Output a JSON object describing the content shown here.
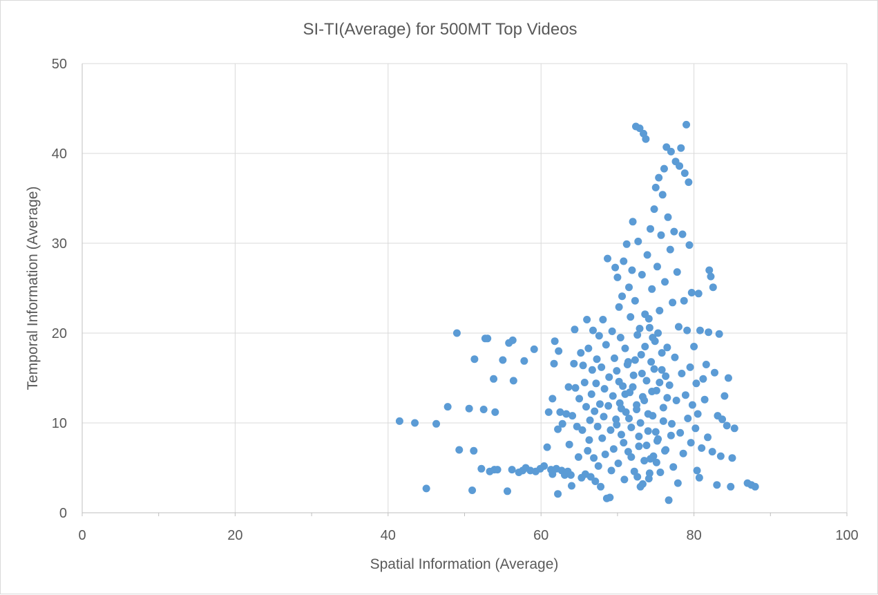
{
  "chart_data": {
    "type": "scatter",
    "title": "SI-TI(Average) for 500MT Top Videos",
    "xlabel": "Spatial Information (Average)",
    "ylabel": "Temporal Information (Average)",
    "xlim": [
      0,
      100
    ],
    "ylim": [
      0,
      50
    ],
    "xticks": [
      "0",
      "20",
      "40",
      "60",
      "80",
      "100"
    ],
    "yticks": [
      "0",
      "10",
      "20",
      "30",
      "40",
      "50"
    ],
    "grid": true,
    "legend": "none",
    "marker_color": "#5b9bd5",
    "series": [
      {
        "points": [
          [
            41.5,
            10.2
          ],
          [
            43.5,
            10.0
          ],
          [
            46.3,
            9.9
          ],
          [
            45.0,
            2.7
          ],
          [
            47.8,
            11.8
          ],
          [
            49.0,
            20.0
          ],
          [
            49.3,
            7.0
          ],
          [
            50.6,
            11.6
          ],
          [
            51.2,
            6.9
          ],
          [
            51.0,
            2.5
          ],
          [
            51.3,
            17.1
          ],
          [
            52.2,
            4.9
          ],
          [
            52.5,
            11.5
          ],
          [
            52.7,
            19.4
          ],
          [
            53.0,
            19.4
          ],
          [
            53.3,
            4.6
          ],
          [
            53.9,
            4.8
          ],
          [
            53.8,
            14.9
          ],
          [
            54.0,
            11.2
          ],
          [
            54.3,
            4.8
          ],
          [
            55.0,
            17.0
          ],
          [
            55.6,
            2.4
          ],
          [
            55.8,
            18.9
          ],
          [
            56.3,
            19.2
          ],
          [
            56.2,
            4.8
          ],
          [
            56.4,
            14.7
          ],
          [
            57.1,
            4.5
          ],
          [
            57.6,
            4.7
          ],
          [
            57.8,
            16.9
          ],
          [
            58.0,
            5.0
          ],
          [
            58.6,
            4.7
          ],
          [
            59.1,
            18.2
          ],
          [
            59.3,
            4.6
          ],
          [
            59.9,
            4.9
          ],
          [
            60.4,
            5.2
          ],
          [
            60.8,
            7.3
          ],
          [
            61.0,
            11.2
          ],
          [
            61.3,
            4.8
          ],
          [
            61.5,
            12.7
          ],
          [
            61.5,
            4.3
          ],
          [
            61.7,
            16.6
          ],
          [
            61.8,
            19.1
          ],
          [
            62.0,
            4.9
          ],
          [
            62.2,
            2.1
          ],
          [
            62.2,
            9.3
          ],
          [
            62.3,
            18.0
          ],
          [
            62.5,
            11.2
          ],
          [
            62.7,
            4.7
          ],
          [
            62.8,
            9.9
          ],
          [
            63.1,
            4.2
          ],
          [
            63.3,
            11.0
          ],
          [
            63.5,
            4.6
          ],
          [
            63.6,
            14.0
          ],
          [
            63.7,
            7.6
          ],
          [
            63.9,
            4.2
          ],
          [
            64.0,
            3.0
          ],
          [
            64.1,
            10.8
          ],
          [
            64.3,
            16.6
          ],
          [
            64.4,
            20.4
          ],
          [
            64.5,
            13.9
          ],
          [
            64.7,
            9.6
          ],
          [
            64.9,
            6.2
          ],
          [
            65.0,
            12.7
          ],
          [
            65.2,
            17.8
          ],
          [
            65.3,
            3.9
          ],
          [
            65.4,
            9.2
          ],
          [
            65.5,
            16.4
          ],
          [
            65.7,
            14.5
          ],
          [
            65.8,
            4.3
          ],
          [
            65.9,
            11.8
          ],
          [
            66.0,
            21.5
          ],
          [
            66.1,
            6.9
          ],
          [
            66.2,
            18.3
          ],
          [
            66.3,
            8.1
          ],
          [
            66.4,
            10.3
          ],
          [
            66.5,
            4.0
          ],
          [
            66.6,
            13.2
          ],
          [
            66.7,
            15.9
          ],
          [
            66.8,
            20.3
          ],
          [
            66.9,
            6.1
          ],
          [
            67.0,
            11.3
          ],
          [
            67.1,
            3.5
          ],
          [
            67.2,
            14.4
          ],
          [
            67.3,
            17.1
          ],
          [
            67.4,
            9.6
          ],
          [
            67.5,
            5.2
          ],
          [
            67.6,
            19.7
          ],
          [
            67.7,
            12.1
          ],
          [
            67.8,
            2.9
          ],
          [
            67.9,
            16.2
          ],
          [
            68.0,
            8.3
          ],
          [
            68.1,
            21.5
          ],
          [
            68.2,
            10.7
          ],
          [
            68.3,
            13.8
          ],
          [
            68.4,
            6.5
          ],
          [
            68.5,
            18.7
          ],
          [
            68.6,
            1.6
          ],
          [
            68.7,
            28.3
          ],
          [
            68.8,
            11.9
          ],
          [
            68.9,
            15.1
          ],
          [
            69.0,
            1.7
          ],
          [
            69.1,
            9.2
          ],
          [
            69.2,
            4.7
          ],
          [
            69.3,
            20.2
          ],
          [
            69.4,
            13.0
          ],
          [
            69.5,
            7.1
          ],
          [
            69.6,
            17.2
          ],
          [
            69.7,
            27.3
          ],
          [
            69.8,
            10.4
          ],
          [
            69.9,
            15.8
          ],
          [
            70.0,
            26.2
          ],
          [
            70.1,
            5.5
          ],
          [
            70.2,
            22.9
          ],
          [
            70.3,
            12.2
          ],
          [
            70.4,
            19.5
          ],
          [
            70.5,
            8.7
          ],
          [
            70.6,
            24.1
          ],
          [
            70.7,
            14.1
          ],
          [
            70.8,
            28.0
          ],
          [
            70.9,
            3.7
          ],
          [
            71.0,
            18.3
          ],
          [
            71.1,
            11.2
          ],
          [
            71.2,
            29.9
          ],
          [
            71.3,
            16.5
          ],
          [
            71.4,
            6.8
          ],
          [
            71.5,
            25.1
          ],
          [
            71.6,
            13.4
          ],
          [
            71.7,
            21.8
          ],
          [
            71.8,
            9.5
          ],
          [
            71.9,
            27.0
          ],
          [
            72.0,
            32.4
          ],
          [
            72.1,
            15.3
          ],
          [
            72.2,
            4.6
          ],
          [
            72.3,
            23.6
          ],
          [
            72.4,
            43.0
          ],
          [
            72.5,
            11.5
          ],
          [
            72.6,
            19.8
          ],
          [
            72.7,
            30.2
          ],
          [
            72.8,
            7.4
          ],
          [
            72.9,
            42.8
          ],
          [
            73.0,
            2.9
          ],
          [
            73.1,
            17.6
          ],
          [
            73.2,
            26.5
          ],
          [
            73.3,
            12.9
          ],
          [
            73.4,
            42.2
          ],
          [
            73.5,
            5.8
          ],
          [
            73.6,
            22.1
          ],
          [
            73.7,
            41.6
          ],
          [
            73.8,
            14.7
          ],
          [
            73.9,
            28.7
          ],
          [
            74.0,
            9.1
          ],
          [
            74.1,
            3.8
          ],
          [
            74.2,
            20.6
          ],
          [
            74.3,
            31.6
          ],
          [
            74.4,
            16.8
          ],
          [
            74.5,
            24.9
          ],
          [
            74.6,
            10.8
          ],
          [
            74.7,
            6.3
          ],
          [
            74.8,
            33.8
          ],
          [
            74.9,
            19.1
          ],
          [
            75.0,
            36.2
          ],
          [
            75.1,
            13.6
          ],
          [
            75.2,
            27.4
          ],
          [
            75.3,
            8.2
          ],
          [
            75.4,
            37.3
          ],
          [
            75.5,
            22.5
          ],
          [
            75.6,
            4.5
          ],
          [
            75.7,
            30.9
          ],
          [
            75.8,
            15.9
          ],
          [
            75.9,
            35.4
          ],
          [
            76.0,
            11.7
          ],
          [
            76.1,
            38.3
          ],
          [
            76.2,
            25.7
          ],
          [
            76.3,
            7.0
          ],
          [
            76.4,
            40.7
          ],
          [
            76.5,
            18.4
          ],
          [
            76.6,
            32.9
          ],
          [
            76.7,
            1.4
          ],
          [
            76.8,
            14.2
          ],
          [
            76.9,
            29.3
          ],
          [
            77.0,
            40.2
          ],
          [
            77.1,
            9.9
          ],
          [
            77.2,
            23.4
          ],
          [
            77.3,
            5.1
          ],
          [
            77.4,
            31.3
          ],
          [
            77.5,
            17.3
          ],
          [
            77.6,
            39.1
          ],
          [
            77.7,
            12.5
          ],
          [
            77.8,
            26.8
          ],
          [
            77.9,
            3.3
          ],
          [
            78.0,
            20.7
          ],
          [
            78.1,
            38.6
          ],
          [
            78.2,
            8.9
          ],
          [
            78.3,
            40.6
          ],
          [
            78.4,
            15.5
          ],
          [
            78.5,
            31.0
          ],
          [
            78.6,
            6.6
          ],
          [
            78.7,
            23.6
          ],
          [
            78.8,
            37.8
          ],
          [
            78.9,
            13.1
          ],
          [
            79.0,
            43.2
          ],
          [
            79.1,
            20.3
          ],
          [
            79.2,
            10.5
          ],
          [
            79.3,
            36.8
          ],
          [
            79.4,
            29.8
          ],
          [
            79.5,
            16.2
          ],
          [
            79.6,
            7.8
          ],
          [
            79.7,
            24.5
          ],
          [
            79.8,
            12.0
          ],
          [
            80.0,
            18.5
          ],
          [
            80.2,
            9.4
          ],
          [
            80.3,
            14.4
          ],
          [
            80.4,
            4.7
          ],
          [
            80.5,
            11.0
          ],
          [
            80.6,
            24.4
          ],
          [
            80.7,
            3.9
          ],
          [
            80.8,
            20.3
          ],
          [
            81.0,
            7.2
          ],
          [
            81.2,
            14.9
          ],
          [
            81.4,
            12.6
          ],
          [
            81.6,
            16.5
          ],
          [
            81.8,
            8.4
          ],
          [
            81.9,
            20.1
          ],
          [
            82.0,
            27.0
          ],
          [
            82.2,
            26.3
          ],
          [
            82.4,
            6.8
          ],
          [
            82.5,
            25.1
          ],
          [
            82.7,
            15.6
          ],
          [
            83.0,
            3.1
          ],
          [
            83.1,
            10.8
          ],
          [
            83.3,
            19.9
          ],
          [
            83.5,
            6.3
          ],
          [
            83.7,
            10.4
          ],
          [
            84.0,
            13.0
          ],
          [
            84.3,
            9.7
          ],
          [
            84.5,
            15.0
          ],
          [
            84.8,
            2.9
          ],
          [
            85.0,
            6.1
          ],
          [
            85.3,
            9.4
          ],
          [
            87.0,
            3.3
          ],
          [
            87.5,
            3.1
          ],
          [
            88.0,
            2.9
          ],
          [
            72.5,
            12.0
          ],
          [
            73.5,
            12.5
          ],
          [
            74.5,
            13.5
          ],
          [
            73.0,
            10.0
          ],
          [
            74.0,
            11.0
          ],
          [
            75.0,
            9.0
          ],
          [
            72.0,
            14.0
          ],
          [
            73.2,
            15.5
          ],
          [
            74.8,
            16.0
          ],
          [
            75.5,
            14.5
          ],
          [
            71.5,
            10.5
          ],
          [
            72.8,
            8.5
          ],
          [
            73.8,
            7.5
          ],
          [
            74.3,
            6.0
          ],
          [
            75.2,
            8.0
          ],
          [
            76.0,
            10.2
          ],
          [
            76.5,
            12.8
          ],
          [
            71.0,
            13.2
          ],
          [
            70.5,
            11.6
          ],
          [
            72.3,
            17.0
          ],
          [
            73.6,
            18.5
          ],
          [
            74.6,
            19.5
          ],
          [
            75.8,
            17.8
          ],
          [
            76.3,
            15.2
          ],
          [
            71.8,
            6.2
          ],
          [
            72.6,
            4.0
          ],
          [
            73.3,
            3.2
          ],
          [
            74.2,
            4.4
          ],
          [
            75.1,
            5.6
          ],
          [
            76.2,
            6.9
          ],
          [
            77.0,
            8.6
          ],
          [
            70.8,
            7.8
          ],
          [
            69.9,
            9.8
          ],
          [
            70.2,
            14.6
          ],
          [
            71.4,
            16.8
          ],
          [
            72.9,
            20.5
          ],
          [
            74.1,
            21.6
          ],
          [
            75.3,
            20.0
          ]
        ]
      }
    ]
  }
}
